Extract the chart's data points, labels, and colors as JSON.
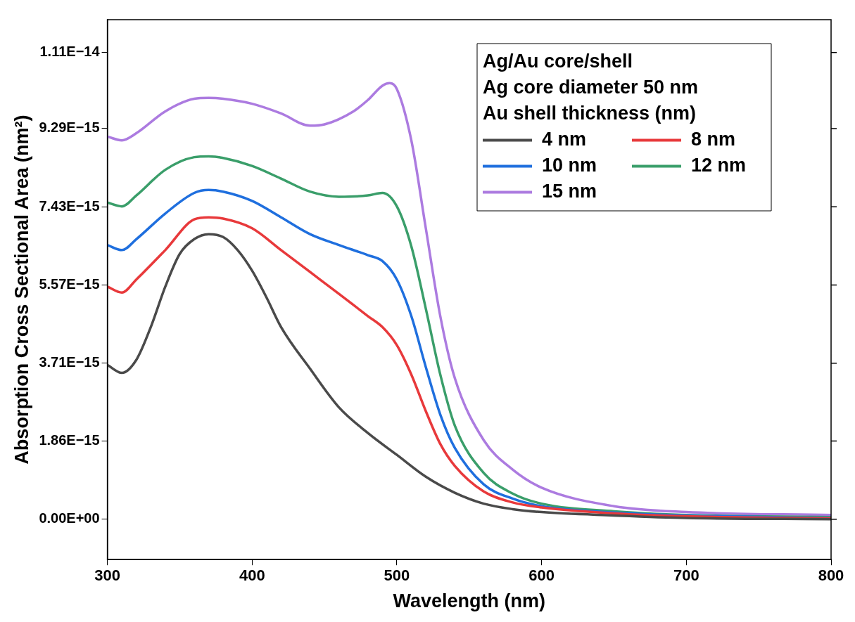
{
  "chart_data": {
    "type": "line",
    "xlabel": "Wavelength (nm)",
    "ylabel": "Absorption Cross Sectional Area (nm²)",
    "legend_title": "Au shell thickness (nm)",
    "annotations": [
      "Ag/Au core/shell",
      "Ag core diameter 50 nm"
    ],
    "xlim": [
      300,
      800
    ],
    "xticks": [
      300,
      400,
      500,
      600,
      700,
      800
    ],
    "ylim": [
      -9.6e-16,
      1.188e-14
    ],
    "yticks": [
      {
        "value": 0,
        "label": "0.00E+00"
      },
      {
        "value": 1.86e-15,
        "label": "1.86E−15"
      },
      {
        "value": 3.71e-15,
        "label": "3.71E−15"
      },
      {
        "value": 5.57e-15,
        "label": "5.57E−15"
      },
      {
        "value": 7.43e-15,
        "label": "7.43E−15"
      },
      {
        "value": 9.29e-15,
        "label": "9.29E−15"
      },
      {
        "value": 1.11e-14,
        "label": "1.11E−14"
      }
    ],
    "grid": false,
    "legend": "top right",
    "marker": "none",
    "line_style": "solid",
    "series": [
      {
        "name": "4 nm",
        "color": "#4a4a4a",
        "x": [
          300,
          310,
          320,
          330,
          340,
          350,
          360,
          370,
          380,
          390,
          400,
          410,
          420,
          440,
          460,
          480,
          500,
          520,
          540,
          560,
          580,
          600,
          650,
          700,
          800
        ],
        "values": [
          3.67e-15,
          3.48e-15,
          3.79e-15,
          4.57e-15,
          5.53e-15,
          6.31e-15,
          6.66e-15,
          6.78e-15,
          6.71e-15,
          6.4e-15,
          5.91e-15,
          5.27e-15,
          4.57e-15,
          3.58e-15,
          2.66e-15,
          2.05e-15,
          1.53e-15,
          1.01e-15,
          6.3e-16,
          3.7e-16,
          2.4e-16,
          1.7e-16,
          9e-17,
          3e-17,
          0
        ]
      },
      {
        "name": "8 nm",
        "color": "#e8393b",
        "x": [
          300,
          310,
          320,
          340,
          360,
          370,
          380,
          400,
          420,
          440,
          460,
          480,
          490,
          500,
          510,
          520,
          530,
          540,
          560,
          580,
          600,
          650,
          700,
          800
        ],
        "values": [
          5.53e-15,
          5.39e-15,
          5.7e-15,
          6.4e-15,
          7.13e-15,
          7.18e-15,
          7.15e-15,
          6.92e-15,
          6.4e-15,
          5.88e-15,
          5.36e-15,
          4.83e-15,
          4.57e-15,
          4.14e-15,
          3.44e-15,
          2.57e-15,
          1.79e-15,
          1.27e-15,
          6.6e-16,
          4e-16,
          2.8e-16,
          1.4e-16,
          7e-17,
          2e-17
        ]
      },
      {
        "name": "10 nm",
        "color": "#1f6fde",
        "x": [
          300,
          310,
          320,
          340,
          360,
          370,
          380,
          400,
          420,
          440,
          460,
          480,
          490,
          500,
          510,
          520,
          530,
          540,
          560,
          580,
          600,
          650,
          700,
          800
        ],
        "values": [
          6.52e-15,
          6.4e-15,
          6.66e-15,
          7.27e-15,
          7.76e-15,
          7.83e-15,
          7.79e-15,
          7.57e-15,
          7.18e-15,
          6.78e-15,
          6.52e-15,
          6.28e-15,
          6.14e-15,
          5.7e-15,
          4.83e-15,
          3.62e-15,
          2.49e-15,
          1.7e-15,
          8.3e-16,
          4.9e-16,
          3.1e-16,
          1.6e-16,
          9e-17,
          3e-17
        ]
      },
      {
        "name": "12 nm",
        "color": "#3a9e6a",
        "x": [
          300,
          310,
          320,
          340,
          360,
          370,
          380,
          400,
          420,
          440,
          460,
          480,
          490,
          500,
          510,
          520,
          530,
          540,
          560,
          580,
          600,
          650,
          700,
          800
        ],
        "values": [
          7.53e-15,
          7.44e-15,
          7.7e-15,
          8.31e-15,
          8.61e-15,
          8.63e-15,
          8.59e-15,
          8.4e-15,
          8.1e-15,
          7.79e-15,
          7.67e-15,
          7.7e-15,
          7.76e-15,
          7.44e-15,
          6.49e-15,
          5.01e-15,
          3.44e-15,
          2.23e-15,
          1.1e-15,
          6.1e-16,
          3.7e-16,
          1.9e-16,
          1e-16,
          5e-17
        ]
      },
      {
        "name": "15 nm",
        "color": "#ac7be0",
        "x": [
          300,
          310,
          320,
          340,
          360,
          370,
          380,
          400,
          420,
          440,
          450,
          470,
          480,
          490,
          495,
          500,
          510,
          520,
          530,
          540,
          560,
          580,
          600,
          650,
          700,
          800
        ],
        "values": [
          9.1e-15,
          9.01e-15,
          9.18e-15,
          9.7e-15,
          1e-14,
          1.002e-14,
          1e-14,
          9.88e-15,
          9.65e-15,
          9.36e-15,
          9.39e-15,
          9.7e-15,
          9.97e-15,
          1.031e-14,
          1.037e-14,
          1.023e-14,
          9.01e-15,
          6.92e-15,
          4.83e-15,
          3.36e-15,
          1.88e-15,
          1.18e-15,
          7.5e-16,
          3.1e-16,
          1.7e-16,
          1e-16
        ]
      }
    ]
  }
}
